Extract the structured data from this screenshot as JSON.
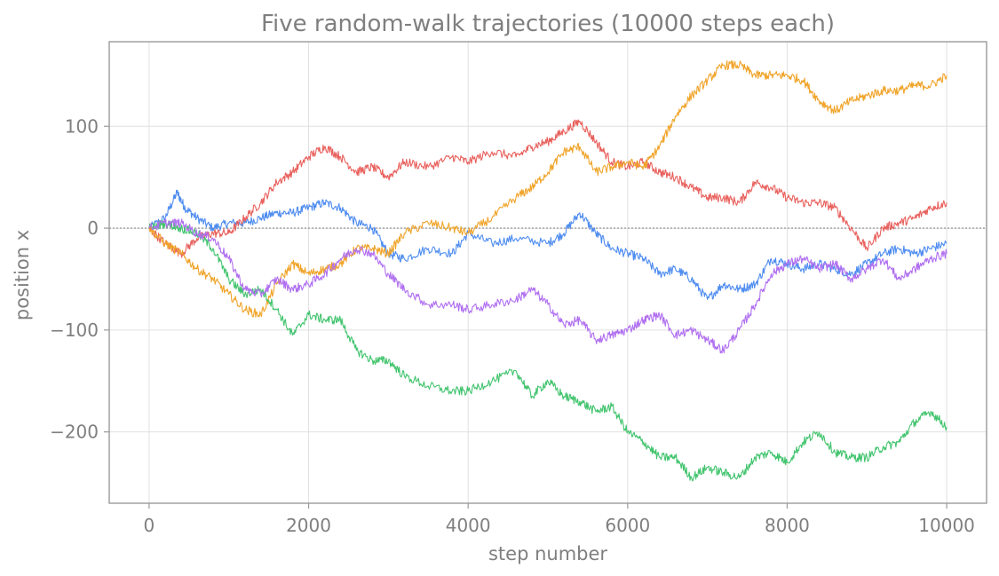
{
  "chart_data": {
    "type": "line",
    "title": "Five random-walk trajectories (10000 steps each)",
    "xlabel": "step number",
    "ylabel": "position x",
    "xlim": [
      -500,
      10500
    ],
    "ylim": [
      -270,
      183
    ],
    "xticks": [
      0,
      2000,
      4000,
      6000,
      8000,
      10000
    ],
    "yticks": [
      -200,
      -100,
      0,
      100
    ],
    "ytick_labels": [
      "−200",
      "−100",
      "0",
      "100"
    ],
    "grid": true,
    "reference_line_y": 0,
    "series": [
      {
        "color": "#4e8cf0",
        "x": [
          0,
          200,
          350,
          450,
          600,
          800,
          1000,
          1200,
          1400,
          1600,
          1800,
          2000,
          2200,
          2400,
          2600,
          2800,
          3000,
          3200,
          3500,
          3800,
          4000,
          4300,
          4600,
          5000,
          5200,
          5400,
          5600,
          5800,
          6000,
          6200,
          6400,
          6600,
          6800,
          7000,
          7200,
          7400,
          7600,
          7800,
          8000,
          8200,
          8400,
          8600,
          8800,
          9000,
          9200,
          9400,
          9600,
          9800,
          10000
        ],
        "y": [
          0,
          10,
          35,
          20,
          10,
          0,
          5,
          5,
          10,
          15,
          15,
          20,
          25,
          20,
          5,
          0,
          -25,
          -30,
          -20,
          -25,
          -5,
          -15,
          -10,
          -15,
          -5,
          15,
          -5,
          -20,
          -25,
          -30,
          -45,
          -40,
          -50,
          -70,
          -55,
          -60,
          -55,
          -30,
          -35,
          -40,
          -35,
          -40,
          -45,
          -35,
          -25,
          -20,
          -25,
          -20,
          -15
        ]
      },
      {
        "color": "#e8605c",
        "x": [
          0,
          200,
          400,
          600,
          800,
          1000,
          1200,
          1400,
          1600,
          1800,
          2000,
          2200,
          2400,
          2600,
          2800,
          3000,
          3200,
          3500,
          3800,
          4000,
          4300,
          4600,
          4800,
          5000,
          5200,
          5400,
          5600,
          5800,
          6000,
          6200,
          6400,
          6600,
          6800,
          7000,
          7200,
          7400,
          7600,
          7800,
          8000,
          8200,
          8400,
          8600,
          8800,
          9000,
          9200,
          9400,
          9600,
          9800,
          10000
        ],
        "y": [
          0,
          -15,
          -25,
          -10,
          -5,
          -5,
          10,
          25,
          45,
          55,
          70,
          80,
          70,
          55,
          60,
          50,
          65,
          60,
          70,
          65,
          75,
          70,
          80,
          85,
          95,
          105,
          85,
          65,
          60,
          65,
          55,
          50,
          40,
          30,
          30,
          25,
          45,
          40,
          30,
          25,
          25,
          20,
          0,
          -20,
          0,
          5,
          10,
          20,
          25
        ]
      },
      {
        "color": "#f0a42a",
        "x": [
          0,
          200,
          400,
          600,
          800,
          1000,
          1200,
          1400,
          1600,
          1800,
          2000,
          2200,
          2400,
          2600,
          2800,
          3000,
          3200,
          3500,
          3800,
          4000,
          4300,
          4600,
          4800,
          5000,
          5200,
          5400,
          5600,
          5800,
          6000,
          6200,
          6400,
          6600,
          6800,
          7000,
          7200,
          7400,
          7600,
          7800,
          8000,
          8200,
          8400,
          8600,
          8800,
          9000,
          9200,
          9400,
          9600,
          9800,
          10000
        ],
        "y": [
          0,
          -15,
          -25,
          -40,
          -50,
          -65,
          -80,
          -85,
          -55,
          -35,
          -45,
          -40,
          -35,
          -20,
          -20,
          -25,
          -5,
          5,
          0,
          -5,
          10,
          30,
          40,
          55,
          75,
          80,
          55,
          60,
          65,
          60,
          80,
          110,
          130,
          145,
          160,
          160,
          150,
          150,
          150,
          145,
          125,
          115,
          125,
          130,
          135,
          135,
          140,
          140,
          150
        ]
      },
      {
        "color": "#42c46e",
        "x": [
          0,
          200,
          400,
          600,
          800,
          1000,
          1200,
          1400,
          1600,
          1800,
          2000,
          2200,
          2400,
          2600,
          2800,
          3000,
          3200,
          3500,
          3800,
          4000,
          4300,
          4600,
          4800,
          5000,
          5200,
          5400,
          5600,
          5800,
          6000,
          6200,
          6400,
          6600,
          6800,
          7000,
          7200,
          7400,
          7600,
          7800,
          8000,
          8200,
          8400,
          8600,
          8800,
          9000,
          9200,
          9400,
          9600,
          9800,
          10000
        ],
        "y": [
          0,
          5,
          0,
          -5,
          -20,
          -50,
          -65,
          -60,
          -80,
          -105,
          -85,
          -90,
          -90,
          -120,
          -130,
          -130,
          -145,
          -155,
          -160,
          -160,
          -150,
          -140,
          -165,
          -150,
          -165,
          -170,
          -180,
          -175,
          -200,
          -210,
          -225,
          -225,
          -245,
          -235,
          -240,
          -245,
          -225,
          -220,
          -230,
          -210,
          -200,
          -220,
          -225,
          -225,
          -215,
          -210,
          -190,
          -180,
          -195
        ]
      },
      {
        "color": "#b06ff0",
        "x": [
          0,
          200,
          400,
          600,
          800,
          1000,
          1200,
          1400,
          1600,
          1800,
          2000,
          2200,
          2400,
          2600,
          2800,
          3000,
          3200,
          3500,
          3800,
          4000,
          4300,
          4600,
          4800,
          5000,
          5200,
          5400,
          5600,
          5800,
          6000,
          6200,
          6400,
          6600,
          6800,
          7000,
          7200,
          7400,
          7600,
          7800,
          8000,
          8200,
          8400,
          8600,
          8800,
          9000,
          9200,
          9400,
          9600,
          9800,
          10000
        ],
        "y": [
          0,
          5,
          5,
          -5,
          -10,
          -30,
          -60,
          -65,
          -50,
          -60,
          -55,
          -45,
          -30,
          -20,
          -25,
          -45,
          -60,
          -75,
          -75,
          -80,
          -75,
          -70,
          -60,
          -75,
          -95,
          -90,
          -110,
          -105,
          -100,
          -90,
          -85,
          -105,
          -100,
          -110,
          -120,
          -100,
          -75,
          -45,
          -35,
          -30,
          -40,
          -35,
          -50,
          -40,
          -30,
          -50,
          -40,
          -30,
          -25
        ]
      }
    ]
  }
}
